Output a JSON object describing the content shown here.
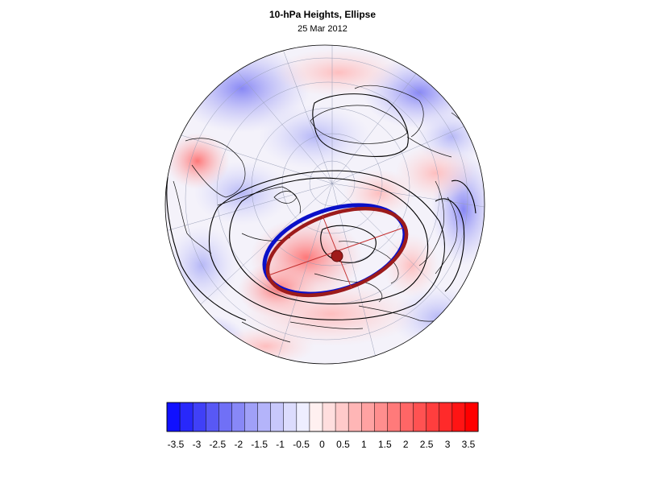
{
  "title": "10-hPa Heights, Ellipse",
  "subtitle": "25 Mar 2012",
  "colors": {
    "contour": "#000000",
    "ellipse_blue": "#0a10c8",
    "ellipse_red": "#9c1b1b",
    "center_marker": "#a01a1a",
    "land_outline": "#111111",
    "graticule": "#9aa0b8"
  },
  "colorbar": {
    "tick_labels": [
      "-3.5",
      "-3",
      "-2.5",
      "-2",
      "-1.5",
      "-1",
      "-0.5",
      "0",
      "0.5",
      "1",
      "1.5",
      "2",
      "2.5",
      "3",
      "3.5"
    ],
    "colors": [
      "#1010ff",
      "#2828fb",
      "#4040f7",
      "#5858f5",
      "#7070f6",
      "#8888f7",
      "#a0a0f8",
      "#b4b4fa",
      "#c8c8fb",
      "#dcdcfd",
      "#eeeeff",
      "#fff0f0",
      "#ffdede",
      "#ffcaca",
      "#ffb6b6",
      "#ffa2a2",
      "#ff8e8e",
      "#ff7a7a",
      "#ff6666",
      "#ff5252",
      "#ff3e3e",
      "#ff2a2a",
      "#ff1414",
      "#ff0000"
    ]
  }
}
